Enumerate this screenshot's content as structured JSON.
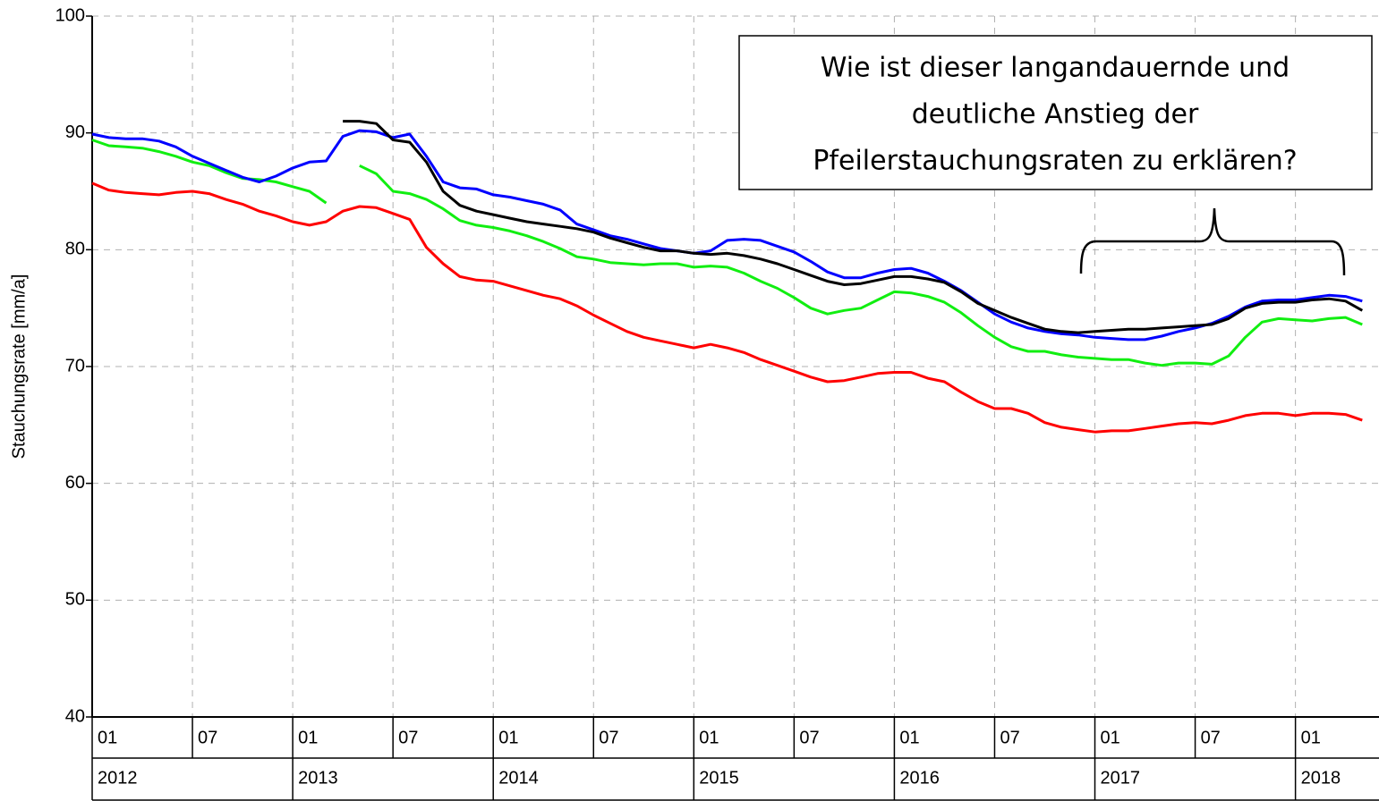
{
  "chart_data": {
    "type": "line",
    "y_label": "Stauchungsrate [mm/a]",
    "annotation": [
      "Wie ist dieser langandauernde und",
      "deutliche Anstieg der",
      "Pfeilerstauchungsraten zu erklären?"
    ],
    "x": [
      "2012-01",
      "2012-02",
      "2012-03",
      "2012-04",
      "2012-05",
      "2012-06",
      "2012-07",
      "2012-08",
      "2012-09",
      "2012-10",
      "2012-11",
      "2012-12",
      "2013-01",
      "2013-02",
      "2013-03",
      "2013-04",
      "2013-05",
      "2013-06",
      "2013-07",
      "2013-08",
      "2013-09",
      "2013-10",
      "2013-11",
      "2013-12",
      "2014-01",
      "2014-02",
      "2014-03",
      "2014-04",
      "2014-05",
      "2014-06",
      "2014-07",
      "2014-08",
      "2014-09",
      "2014-10",
      "2014-11",
      "2014-12",
      "2015-01",
      "2015-02",
      "2015-03",
      "2015-04",
      "2015-05",
      "2015-06",
      "2015-07",
      "2015-08",
      "2015-09",
      "2015-10",
      "2015-11",
      "2015-12",
      "2016-01",
      "2016-02",
      "2016-03",
      "2016-04",
      "2016-05",
      "2016-06",
      "2016-07",
      "2016-08",
      "2016-09",
      "2016-10",
      "2016-11",
      "2016-12",
      "2017-01",
      "2017-02",
      "2017-03",
      "2017-04",
      "2017-05",
      "2017-06",
      "2017-07",
      "2017-08",
      "2017-09",
      "2017-10",
      "2017-11",
      "2017-12",
      "2018-01",
      "2018-02",
      "2018-03",
      "2018-04",
      "2018-05"
    ],
    "series": [
      {
        "color": "#ff0000",
        "values": [
          85.7,
          85.1,
          84.9,
          84.8,
          84.7,
          84.9,
          85.0,
          84.8,
          84.3,
          83.9,
          83.3,
          82.9,
          82.4,
          82.1,
          82.4,
          83.3,
          83.7,
          83.6,
          83.1,
          82.6,
          80.2,
          78.8,
          77.7,
          77.4,
          77.3,
          76.9,
          76.5,
          76.1,
          75.8,
          75.2,
          74.4,
          73.7,
          73.0,
          72.5,
          72.2,
          71.9,
          71.6,
          71.9,
          71.6,
          71.2,
          70.6,
          70.1,
          69.6,
          69.1,
          68.7,
          68.8,
          69.1,
          69.4,
          69.5,
          69.5,
          69.0,
          68.7,
          67.8,
          67.0,
          66.4,
          66.4,
          66.0,
          65.2,
          64.8,
          64.6,
          64.4,
          64.5,
          64.5,
          64.7,
          64.9,
          65.1,
          65.2,
          65.1,
          65.4,
          65.8,
          66.0,
          66.0,
          65.8,
          66.0,
          66.0,
          65.9,
          65.4
        ]
      },
      {
        "color": "#11ee11",
        "values": [
          89.4,
          88.9,
          88.8,
          88.7,
          88.4,
          88.0,
          87.5,
          87.2,
          86.6,
          86.1,
          86.0,
          85.8,
          85.4,
          85.0,
          84.0,
          null,
          87.2,
          86.5,
          85.0,
          84.8,
          84.3,
          83.5,
          82.5,
          82.1,
          81.9,
          81.6,
          81.2,
          80.7,
          80.1,
          79.4,
          79.2,
          78.9,
          78.8,
          78.7,
          78.8,
          78.8,
          78.5,
          78.6,
          78.5,
          78.0,
          77.3,
          76.7,
          75.9,
          75.0,
          74.5,
          74.8,
          75.0,
          75.7,
          76.4,
          76.3,
          76.0,
          75.5,
          74.6,
          73.5,
          72.5,
          71.7,
          71.3,
          71.3,
          71.0,
          70.8,
          70.7,
          70.6,
          70.6,
          70.3,
          70.1,
          70.3,
          70.3,
          70.2,
          70.9,
          72.5,
          73.8,
          74.1,
          74.0,
          73.9,
          74.1,
          74.2,
          73.6
        ]
      },
      {
        "color": "#0000ff",
        "values": [
          89.9,
          89.6,
          89.5,
          89.5,
          89.3,
          88.8,
          88.0,
          87.4,
          86.8,
          86.2,
          85.8,
          86.3,
          87.0,
          87.5,
          87.6,
          89.7,
          90.2,
          90.1,
          89.6,
          89.9,
          88.0,
          85.8,
          85.3,
          85.2,
          84.7,
          84.5,
          84.2,
          83.9,
          83.4,
          82.2,
          81.7,
          81.2,
          80.9,
          80.5,
          80.1,
          79.9,
          79.7,
          79.9,
          80.8,
          80.9,
          80.8,
          80.3,
          79.8,
          79.0,
          78.1,
          77.6,
          77.6,
          78.0,
          78.3,
          78.4,
          78.0,
          77.3,
          76.5,
          75.5,
          74.5,
          73.8,
          73.3,
          73.0,
          72.8,
          72.7,
          72.5,
          72.4,
          72.3,
          72.3,
          72.6,
          73.0,
          73.3,
          73.7,
          74.3,
          75.1,
          75.6,
          75.7,
          75.7,
          75.9,
          76.1,
          76.0,
          75.6
        ]
      },
      {
        "color": "#000000",
        "values": [
          null,
          null,
          null,
          null,
          null,
          null,
          null,
          null,
          null,
          null,
          null,
          null,
          null,
          null,
          null,
          91.0,
          91.0,
          90.8,
          89.4,
          89.2,
          87.5,
          85.0,
          83.8,
          83.3,
          83.0,
          82.7,
          82.4,
          82.2,
          82.0,
          81.8,
          81.5,
          81.0,
          80.6,
          80.2,
          79.9,
          79.9,
          79.7,
          79.6,
          79.7,
          79.5,
          79.2,
          78.8,
          78.3,
          77.8,
          77.3,
          77.0,
          77.1,
          77.4,
          77.7,
          77.7,
          77.5,
          77.2,
          76.4,
          75.4,
          74.8,
          74.2,
          73.7,
          73.2,
          73.0,
          72.9,
          73.0,
          73.1,
          73.2,
          73.2,
          73.3,
          73.4,
          73.5,
          73.6,
          74.1,
          75.0,
          75.4,
          75.5,
          75.5,
          75.7,
          75.8,
          75.6,
          74.8
        ]
      }
    ],
    "xlim": [
      "2012-01",
      "2018-06"
    ],
    "xticks": [
      {
        "value": "2012-01",
        "label": "01"
      },
      {
        "value": "2012-07",
        "label": "07"
      },
      {
        "value": "2013-01",
        "label": "01"
      },
      {
        "value": "2013-07",
        "label": "07"
      },
      {
        "value": "2014-01",
        "label": "01"
      },
      {
        "value": "2014-07",
        "label": "07"
      },
      {
        "value": "2015-01",
        "label": "01"
      },
      {
        "value": "2015-07",
        "label": "07"
      },
      {
        "value": "2016-01",
        "label": "01"
      },
      {
        "value": "2016-07",
        "label": "07"
      },
      {
        "value": "2017-01",
        "label": "01"
      },
      {
        "value": "2017-07",
        "label": "07"
      },
      {
        "value": "2018-01",
        "label": "01"
      }
    ],
    "xticks_years": [
      {
        "value": "2012-01",
        "label": "2012"
      },
      {
        "value": "2013-01",
        "label": "2013"
      },
      {
        "value": "2014-01",
        "label": "2014"
      },
      {
        "value": "2015-01",
        "label": "2015"
      },
      {
        "value": "2016-01",
        "label": "2016"
      },
      {
        "value": "2017-01",
        "label": "2017"
      },
      {
        "value": "2018-01",
        "label": "2018"
      }
    ],
    "ylim": [
      40,
      100
    ],
    "yticks": [
      40,
      50,
      60,
      70,
      80,
      90,
      100
    ],
    "grid": true
  }
}
